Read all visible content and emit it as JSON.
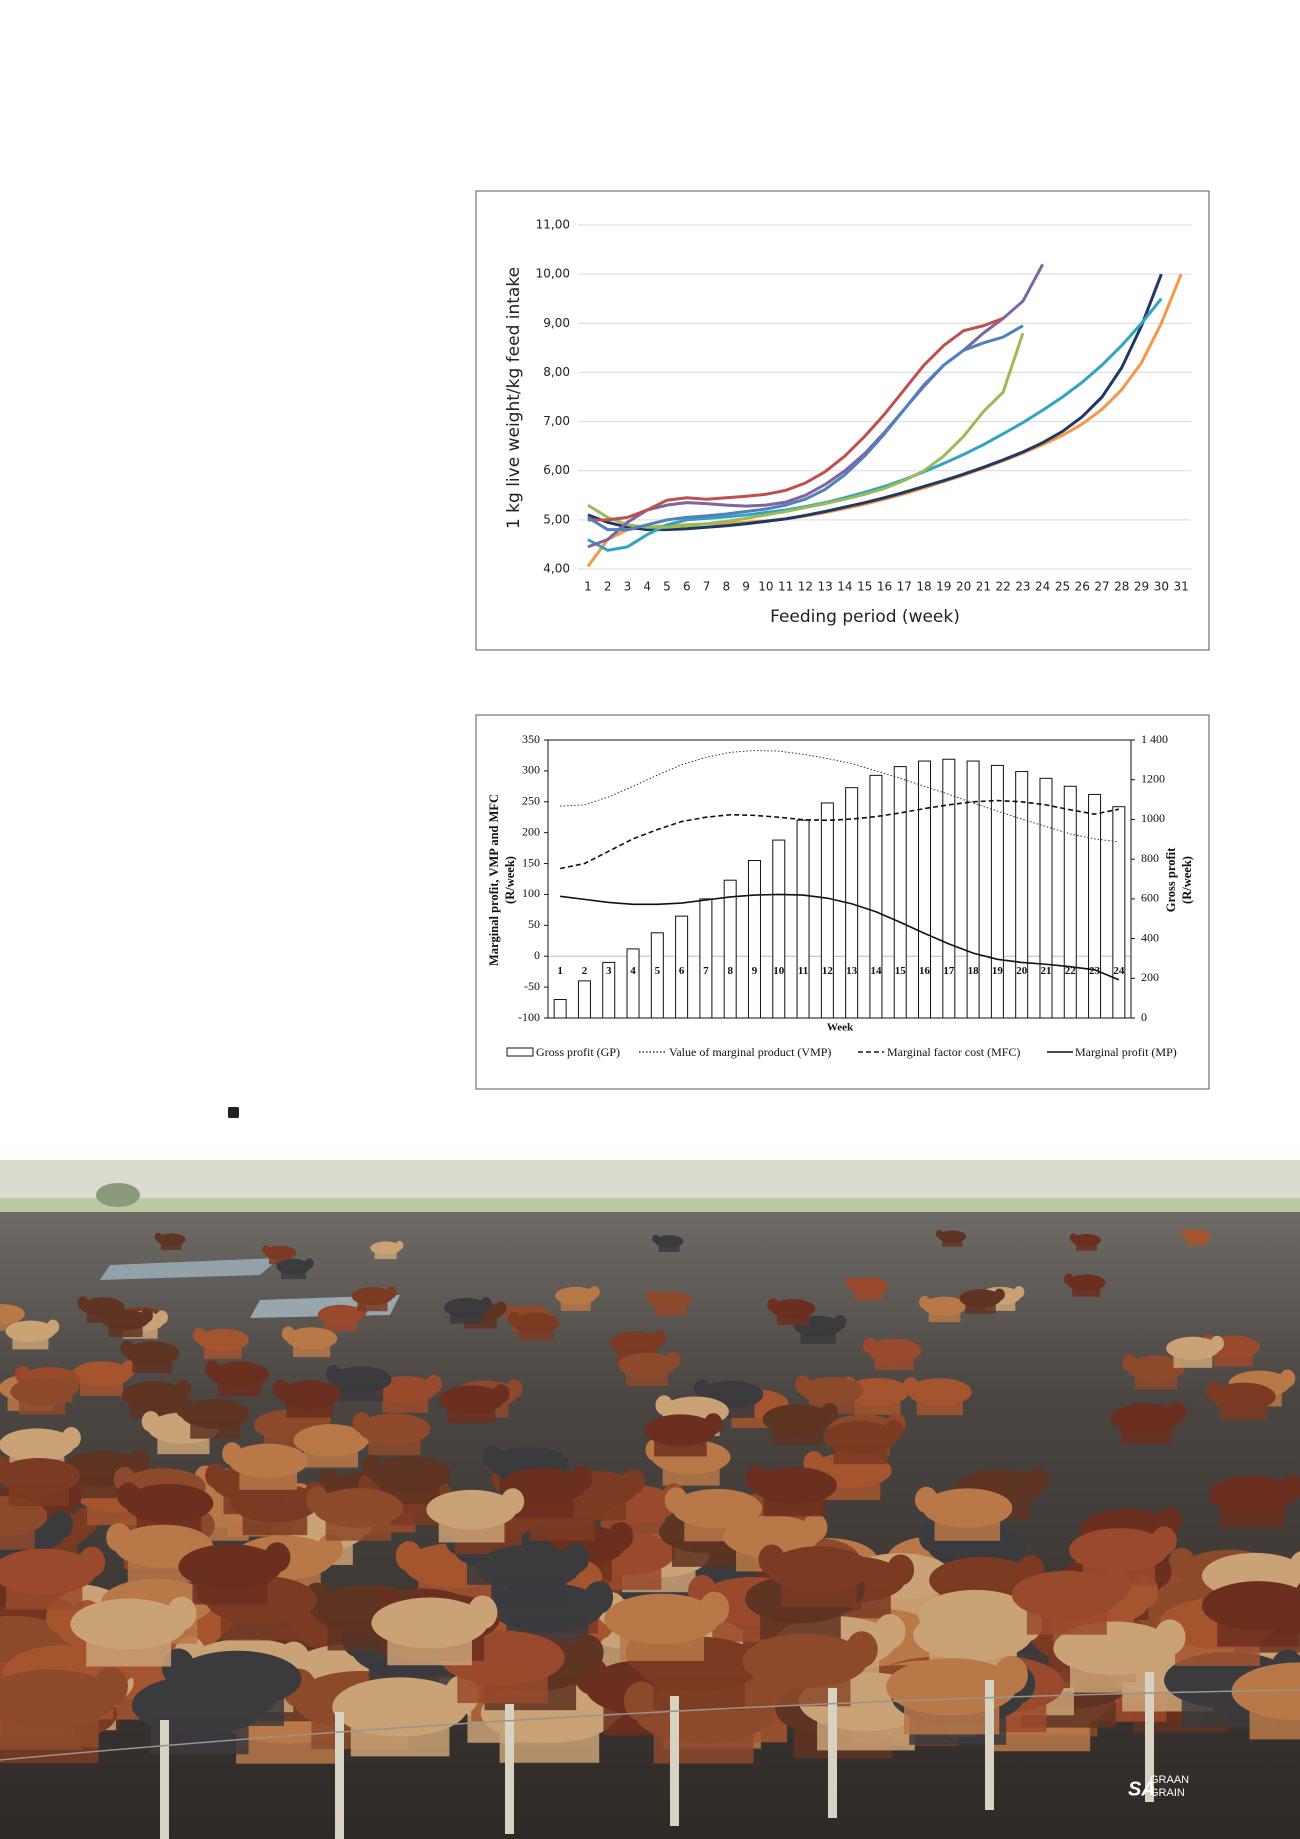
{
  "chart_data": [
    {
      "type": "line",
      "y_label": "1 kg live weight/kg feed intake",
      "x_label": "Feeding period (week)",
      "categories": [
        1,
        2,
        3,
        4,
        5,
        6,
        7,
        8,
        9,
        10,
        11,
        12,
        13,
        14,
        15,
        16,
        17,
        18,
        19,
        20,
        21,
        22,
        23,
        24,
        25,
        26,
        27,
        28,
        29,
        30,
        31
      ],
      "ylim": [
        4,
        11
      ],
      "yticks": [
        {
          "value": 4,
          "label": "4,00"
        },
        {
          "value": 5,
          "label": "5,00"
        },
        {
          "value": 6,
          "label": "6,00"
        },
        {
          "value": 7,
          "label": "7,00"
        },
        {
          "value": 8,
          "label": "8,00"
        },
        {
          "value": 9,
          "label": "9,00"
        },
        {
          "value": 10,
          "label": "10,00"
        },
        {
          "value": 11,
          "label": "11,00"
        }
      ],
      "grid": true,
      "series": [
        {
          "color": "#f79646",
          "values": [
            4.05,
            4.6,
            4.8,
            4.85,
            4.88,
            4.9,
            4.92,
            4.93,
            4.95,
            4.98,
            5.02,
            5.08,
            5.15,
            5.23,
            5.32,
            5.42,
            5.53,
            5.65,
            5.78,
            5.91,
            6.05,
            6.2,
            6.36,
            6.53,
            6.72,
            6.95,
            7.25,
            7.65,
            8.2,
            9.0,
            10.0
          ]
        },
        {
          "color": "#1f3864",
          "values": [
            5.1,
            4.95,
            4.85,
            4.8,
            4.8,
            4.82,
            4.85,
            4.88,
            4.92,
            4.97,
            5.02,
            5.09,
            5.17,
            5.26,
            5.35,
            5.45,
            5.56,
            5.68,
            5.8,
            5.93,
            6.07,
            6.22,
            6.38,
            6.57,
            6.8,
            7.1,
            7.5,
            8.1,
            8.95,
            10.0,
            null
          ]
        },
        {
          "color": "#31a4c4",
          "values": [
            4.6,
            4.38,
            4.45,
            4.7,
            4.9,
            5.0,
            5.03,
            5.06,
            5.1,
            5.15,
            5.2,
            5.27,
            5.35,
            5.45,
            5.56,
            5.68,
            5.82,
            5.98,
            6.15,
            6.33,
            6.53,
            6.75,
            6.98,
            7.23,
            7.5,
            7.8,
            8.15,
            8.55,
            9.0,
            9.5,
            null
          ]
        },
        {
          "color": "#9bbb59",
          "values": [
            5.3,
            5.05,
            4.9,
            4.85,
            4.85,
            4.88,
            4.92,
            4.97,
            5.03,
            5.1,
            5.17,
            5.25,
            5.33,
            5.42,
            5.52,
            5.64,
            5.8,
            6.0,
            6.3,
            6.7,
            7.2,
            7.6,
            8.8,
            null,
            null,
            null,
            null,
            null,
            null,
            null,
            null
          ]
        },
        {
          "color": "#8064a2",
          "values": [
            4.45,
            4.6,
            4.95,
            5.2,
            5.3,
            5.35,
            5.33,
            5.3,
            5.28,
            5.3,
            5.36,
            5.5,
            5.72,
            6.0,
            6.35,
            6.78,
            7.25,
            7.72,
            8.15,
            8.45,
            8.8,
            9.1,
            9.45,
            10.2,
            null,
            null,
            null,
            null,
            null,
            null,
            null
          ]
        },
        {
          "color": "#c0504d",
          "values": [
            5.0,
            5.0,
            5.05,
            5.2,
            5.4,
            5.45,
            5.42,
            5.45,
            5.48,
            5.52,
            5.6,
            5.75,
            5.98,
            6.3,
            6.7,
            7.15,
            7.65,
            8.15,
            8.55,
            8.85,
            8.95,
            9.1,
            null,
            null,
            null,
            null,
            null,
            null,
            null,
            null,
            null
          ]
        },
        {
          "color": "#4f81bd",
          "values": [
            5.05,
            4.8,
            4.8,
            4.9,
            5.0,
            5.05,
            5.08,
            5.12,
            5.17,
            5.22,
            5.3,
            5.42,
            5.62,
            5.92,
            6.3,
            6.75,
            7.25,
            7.75,
            8.15,
            8.45,
            8.6,
            8.72,
            8.95,
            null,
            null,
            null,
            null,
            null,
            null,
            null,
            null
          ]
        }
      ]
    },
    {
      "type": "combo",
      "y_label": [
        "Marginal profit, VMP and MFC",
        "(R/week)"
      ],
      "y2_label": [
        "Gross profit",
        "(R/week)"
      ],
      "x_label": "Week",
      "categories": [
        1,
        2,
        3,
        4,
        5,
        6,
        7,
        8,
        9,
        10,
        11,
        12,
        13,
        14,
        15,
        16,
        17,
        18,
        19,
        20,
        21,
        22,
        23,
        24
      ],
      "ylim": [
        -100,
        350
      ],
      "yticks": [
        -100,
        -50,
        0,
        50,
        100,
        150,
        200,
        250,
        300,
        350
      ],
      "y2lim": [
        0,
        1400
      ],
      "y2ticks": [
        0,
        200,
        400,
        600,
        800,
        1000,
        1200,
        {
          "value": 1400,
          "label": "1 400"
        }
      ],
      "series": [
        {
          "name": "Gross profit (GP)",
          "kind": "bar",
          "axis": "y2",
          "color": "#ffffff",
          "values": [
            93,
            187,
            280,
            348,
            429,
            513,
            600,
            694,
            793,
            896,
            996,
            1083,
            1160,
            1222,
            1266,
            1294,
            1303,
            1294,
            1272,
            1241,
            1207,
            1167,
            1126,
            1064
          ]
        },
        {
          "name": "Value of marginal product (VMP)",
          "kind": "line",
          "dash": "dotted",
          "color": "#333333",
          "values": [
            243,
            245,
            258,
            275,
            293,
            310,
            322,
            330,
            333,
            332,
            327,
            320,
            312,
            300,
            288,
            275,
            262,
            248,
            235,
            222,
            210,
            198,
            190,
            185
          ]
        },
        {
          "name": "Marginal factor cost  (MFC)",
          "kind": "line",
          "dash": "dashed",
          "color": "#111111",
          "values": [
            142,
            150,
            170,
            190,
            205,
            218,
            225,
            229,
            228,
            225,
            221,
            220,
            222,
            226,
            232,
            239,
            245,
            250,
            252,
            250,
            245,
            237,
            230,
            238
          ]
        },
        {
          "name": "Marginal profit (MP)",
          "kind": "line",
          "dash": "solid",
          "color": "#111111",
          "values": [
            97,
            92,
            87,
            84,
            84,
            86,
            91,
            96,
            99,
            100,
            99,
            94,
            85,
            72,
            55,
            37,
            20,
            5,
            -5,
            -10,
            -13,
            -17,
            -22,
            -38
          ]
        }
      ]
    }
  ],
  "photo_logo": {
    "mark": "SA",
    "line1": "GRAAN",
    "line2": "GRAIN"
  }
}
